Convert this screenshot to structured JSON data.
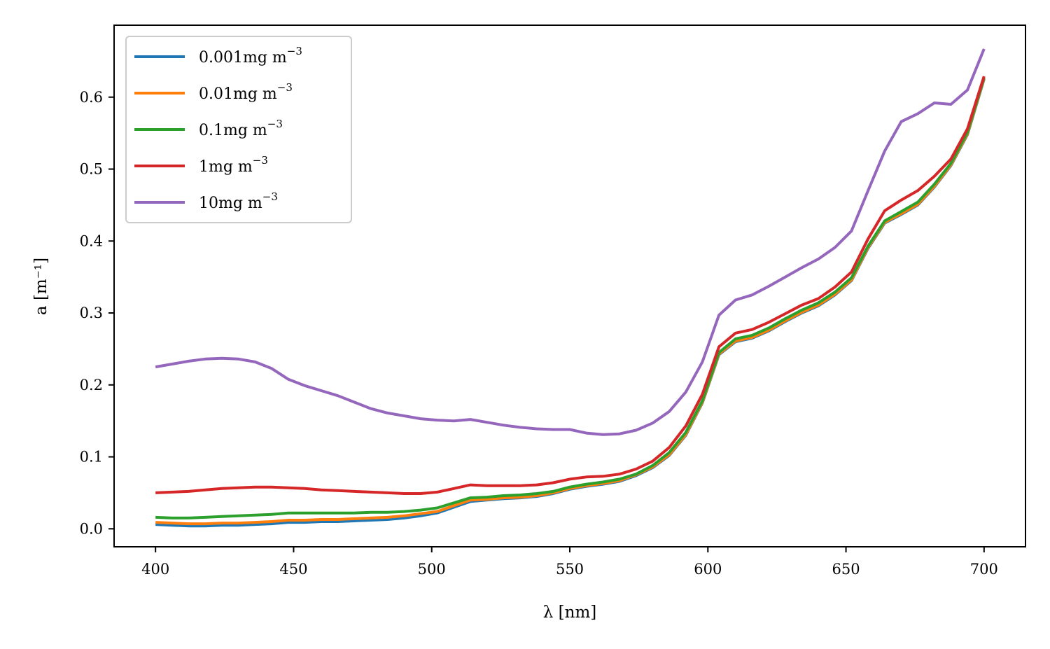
{
  "chart_data": {
    "type": "line",
    "xlabel": "λ [nm]",
    "ylabel": "a [m⁻¹]",
    "xlim": [
      385,
      715
    ],
    "ylim": [
      -0.025,
      0.7
    ],
    "xticks": [
      400,
      450,
      500,
      550,
      600,
      650,
      700
    ],
    "yticks": [
      0.0,
      0.1,
      0.2,
      0.3,
      0.4,
      0.5,
      0.6
    ],
    "ytick_labels": [
      "0.0",
      "0.1",
      "0.2",
      "0.3",
      "0.4",
      "0.5",
      "0.6"
    ],
    "grid": false,
    "legend": "top-left",
    "x": [
      400,
      406,
      412,
      418,
      424,
      430,
      436,
      442,
      448,
      454,
      460,
      466,
      472,
      478,
      484,
      490,
      496,
      502,
      508,
      514,
      520,
      526,
      532,
      538,
      544,
      550,
      556,
      562,
      568,
      574,
      580,
      586,
      592,
      598,
      604,
      610,
      616,
      622,
      628,
      634,
      640,
      646,
      652,
      658,
      664,
      670,
      676,
      682,
      688,
      694,
      700
    ],
    "series": [
      {
        "name": "0.001",
        "color": "#1f77b4",
        "values": [
          0.006,
          0.005,
          0.004,
          0.004,
          0.005,
          0.005,
          0.006,
          0.007,
          0.009,
          0.009,
          0.01,
          0.01,
          0.011,
          0.012,
          0.013,
          0.015,
          0.018,
          0.022,
          0.03,
          0.038,
          0.04,
          0.042,
          0.043,
          0.045,
          0.049,
          0.055,
          0.059,
          0.062,
          0.066,
          0.074,
          0.085,
          0.102,
          0.13,
          0.175,
          0.242,
          0.26,
          0.265,
          0.275,
          0.288,
          0.3,
          0.31,
          0.325,
          0.345,
          0.39,
          0.425,
          0.437,
          0.45,
          0.475,
          0.505,
          0.548,
          0.625
        ]
      },
      {
        "name": "0.01",
        "color": "#ff7f0e",
        "values": [
          0.009,
          0.008,
          0.007,
          0.007,
          0.008,
          0.008,
          0.009,
          0.01,
          0.012,
          0.012,
          0.013,
          0.013,
          0.014,
          0.015,
          0.016,
          0.018,
          0.021,
          0.024,
          0.032,
          0.04,
          0.041,
          0.043,
          0.044,
          0.046,
          0.05,
          0.056,
          0.06,
          0.063,
          0.067,
          0.075,
          0.086,
          0.103,
          0.131,
          0.176,
          0.243,
          0.261,
          0.266,
          0.276,
          0.289,
          0.301,
          0.311,
          0.326,
          0.346,
          0.391,
          0.426,
          0.438,
          0.451,
          0.476,
          0.506,
          0.549,
          0.626
        ]
      },
      {
        "name": "0.1",
        "color": "#2ca02c",
        "values": [
          0.016,
          0.015,
          0.015,
          0.016,
          0.017,
          0.018,
          0.019,
          0.02,
          0.022,
          0.022,
          0.022,
          0.022,
          0.022,
          0.023,
          0.023,
          0.024,
          0.026,
          0.029,
          0.036,
          0.043,
          0.044,
          0.046,
          0.047,
          0.049,
          0.052,
          0.058,
          0.062,
          0.065,
          0.069,
          0.076,
          0.088,
          0.106,
          0.134,
          0.178,
          0.245,
          0.264,
          0.269,
          0.279,
          0.292,
          0.304,
          0.314,
          0.329,
          0.349,
          0.393,
          0.428,
          0.441,
          0.454,
          0.479,
          0.508,
          0.551,
          0.627
        ]
      },
      {
        "name": "1",
        "color": "#d62728",
        "values": [
          0.05,
          0.051,
          0.052,
          0.054,
          0.056,
          0.057,
          0.058,
          0.058,
          0.057,
          0.056,
          0.054,
          0.053,
          0.052,
          0.051,
          0.05,
          0.049,
          0.049,
          0.051,
          0.056,
          0.061,
          0.06,
          0.06,
          0.06,
          0.061,
          0.064,
          0.069,
          0.072,
          0.073,
          0.076,
          0.083,
          0.094,
          0.113,
          0.143,
          0.187,
          0.253,
          0.272,
          0.277,
          0.287,
          0.299,
          0.311,
          0.32,
          0.336,
          0.357,
          0.403,
          0.442,
          0.457,
          0.47,
          0.49,
          0.514,
          0.556,
          0.629
        ]
      },
      {
        "name": "10",
        "color": "#9467bd",
        "values": [
          0.225,
          0.229,
          0.233,
          0.236,
          0.237,
          0.236,
          0.232,
          0.223,
          0.208,
          0.199,
          0.192,
          0.185,
          0.176,
          0.167,
          0.161,
          0.157,
          0.153,
          0.151,
          0.15,
          0.152,
          0.148,
          0.144,
          0.141,
          0.139,
          0.138,
          0.138,
          0.133,
          0.131,
          0.132,
          0.137,
          0.147,
          0.163,
          0.19,
          0.232,
          0.297,
          0.318,
          0.325,
          0.337,
          0.35,
          0.363,
          0.375,
          0.391,
          0.414,
          0.47,
          0.525,
          0.566,
          0.577,
          0.592,
          0.59,
          0.61,
          0.667
        ]
      }
    ]
  },
  "legend": {
    "unit": "mg m",
    "exponent": "−3"
  }
}
